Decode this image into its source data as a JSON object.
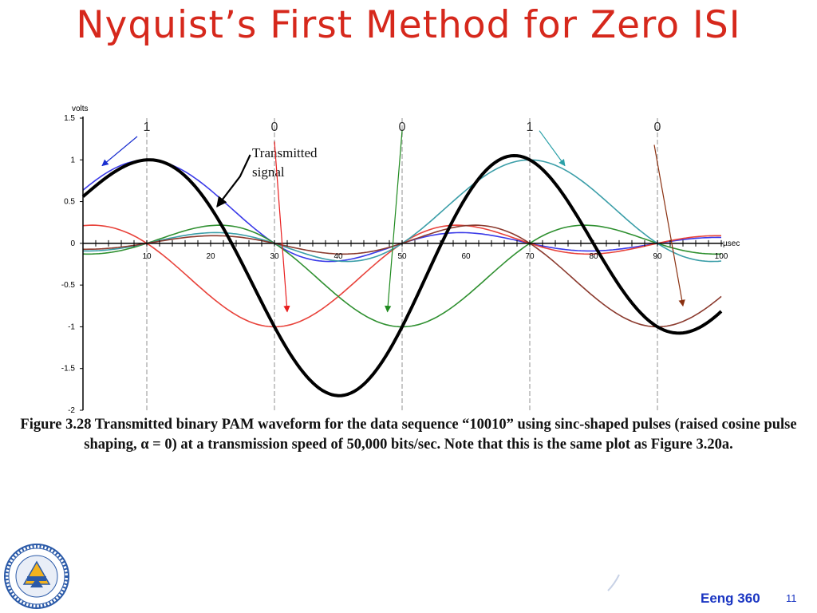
{
  "slide": {
    "title": "Nyquist’s First Method for Zero ISI",
    "caption": "Figure 3.28 Transmitted binary PAM waveform for the data sequence “10010” using sinc-shaped pulses (raised cosine pulse shaping, α = 0) at a transmission speed of 50,000 bits/sec. Note that this is the same plot as Figure 3.20a.",
    "course": "Eeng 360",
    "page": "11"
  },
  "chart_data": {
    "type": "line",
    "title": "",
    "xlabel": "µsec",
    "ylabel": "volts",
    "xlim": [
      0,
      100
    ],
    "ylim": [
      -2,
      1.5
    ],
    "y_ticks": [
      "1.5",
      "1",
      "0.5",
      "0",
      "-0.5",
      "-1",
      "-1.5",
      "-2"
    ],
    "x_ticks": [
      "10",
      "20",
      "30",
      "40",
      "50",
      "60",
      "70",
      "80",
      "90",
      "100"
    ],
    "bit_labels": [
      {
        "bit": "1",
        "x": 10
      },
      {
        "bit": "0",
        "x": 30
      },
      {
        "bit": "0",
        "x": 50
      },
      {
        "bit": "1",
        "x": 70
      },
      {
        "bit": "0",
        "x": 90
      }
    ],
    "grid_lines_x": [
      10,
      30,
      50,
      70,
      90
    ],
    "annotation": {
      "text_line1": "Transmitted",
      "text_line2": "signal"
    },
    "bit_period": 20,
    "pulses": [
      {
        "center": 10,
        "amplitude": 1,
        "color": "#3a3ae8"
      },
      {
        "center": 30,
        "amplitude": -1,
        "color": "#e8423a"
      },
      {
        "center": 50,
        "amplitude": -1,
        "color": "#2f9030"
      },
      {
        "center": 70,
        "amplitude": 1,
        "color": "#3b9ea8"
      },
      {
        "center": 90,
        "amplitude": -1,
        "color": "#8b3a2e"
      }
    ],
    "sum_color": "#000000",
    "arrow_colors": [
      "#1a2fd0",
      "#e81e1e",
      "#1f8a1f",
      "#2aa0a8",
      "#8a3010"
    ]
  }
}
